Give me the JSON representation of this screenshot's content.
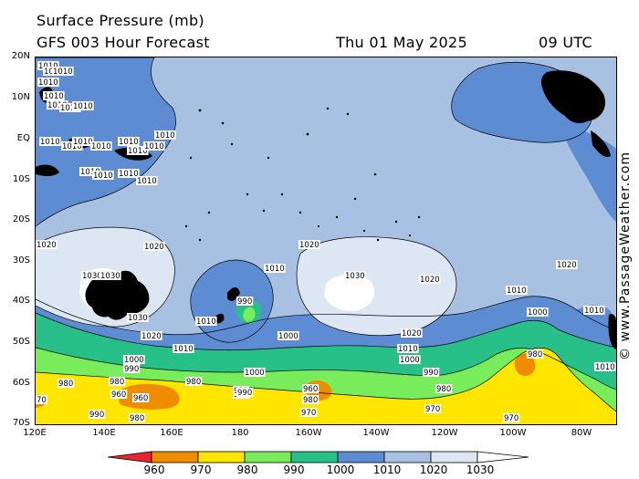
{
  "header": {
    "title": "Surface Pressure (mb)",
    "subtitle": "GFS 003 Hour Forecast",
    "date": "Thu 01 May 2025",
    "time": "09 UTC"
  },
  "credit": "© www.PassageWeather.com",
  "lat_labels": [
    "20N",
    "10N",
    "EQ",
    "10S",
    "20S",
    "30S",
    "40S",
    "50S",
    "60S",
    "70S"
  ],
  "lon_labels": [
    "120E",
    "140E",
    "160E",
    "180",
    "160W",
    "140W",
    "120W",
    "100W",
    "80W"
  ],
  "scale": {
    "labels": [
      "960",
      "970",
      "980",
      "990",
      "1000",
      "1010",
      "1020",
      "1030"
    ],
    "colors": [
      "#e8242c",
      "#f08c00",
      "#ffe600",
      "#78ec5a",
      "#28c088",
      "#5e8cd2",
      "#a8c0e2",
      "#dde6f3"
    ]
  },
  "colors": {
    "c1030": "#ffffff",
    "c1020": "#dde6f3",
    "c1010": "#a8c0e2",
    "c1000": "#5e8cd2",
    "c990": "#28c088",
    "c980": "#78ec5a",
    "c970": "#ffe600",
    "c960": "#f08c00",
    "c950": "#e8242c"
  },
  "isobar_labels": [
    "1010",
    "1010",
    "1010",
    "1010",
    "1010",
    "1010",
    "1010",
    "1010",
    "1010",
    "1010",
    "1010",
    "1010",
    "1010",
    "1010",
    "1010",
    "1010",
    "1010",
    "1010",
    "1010",
    "1010",
    "1020",
    "1030",
    "1030",
    "1030",
    "1020",
    "1010",
    "990",
    "1010",
    "1010",
    "1000",
    "1020",
    "1030",
    "1020",
    "1020",
    "1020",
    "1010",
    "1010",
    "1000",
    "1010",
    "1020",
    "1000",
    "1010",
    "1000",
    "990",
    "990",
    "980",
    "970",
    "960",
    "960",
    "980",
    "980",
    "990",
    "1000",
    "980",
    "960",
    "980",
    "970",
    "970",
    "970",
    "980",
    "990",
    "990",
    "980",
    "70"
  ]
}
